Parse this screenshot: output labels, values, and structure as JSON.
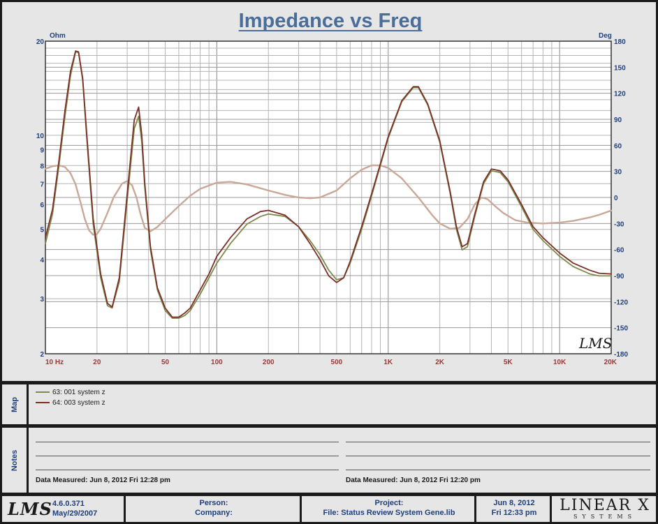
{
  "chart_data": {
    "type": "line",
    "title": "Impedance vs Freq",
    "x_scale": "log",
    "xlim": [
      10,
      20000
    ],
    "x_tick_labels": [
      {
        "value": 10,
        "label": "10  Hz"
      },
      {
        "value": 20,
        "label": "20"
      },
      {
        "value": 50,
        "label": "50"
      },
      {
        "value": 100,
        "label": "100"
      },
      {
        "value": 200,
        "label": "200"
      },
      {
        "value": 500,
        "label": "500"
      },
      {
        "value": 1000,
        "label": "1K"
      },
      {
        "value": 2000,
        "label": "2K"
      },
      {
        "value": 5000,
        "label": "5K"
      },
      {
        "value": 10000,
        "label": "10K"
      },
      {
        "value": 20000,
        "label": "20K"
      }
    ],
    "y_left": {
      "unit": "Ohm",
      "scale": "log",
      "lim": [
        2,
        20
      ],
      "ticks": [
        2,
        3,
        4,
        5,
        6,
        7,
        8,
        9,
        10,
        20
      ]
    },
    "y_right": {
      "unit": "Deg",
      "scale": "linear",
      "lim": [
        -180,
        180
      ],
      "ticks": [
        -180,
        -150,
        -120,
        -90,
        -60,
        -30,
        0,
        30,
        60,
        90,
        120,
        150,
        180
      ]
    },
    "grid": true,
    "series": [
      {
        "name": "63: 001 system z",
        "axis": "left",
        "color": "#7d8a4a",
        "x": [
          10,
          11,
          12,
          13,
          14,
          15,
          15.6,
          16.5,
          17.5,
          19,
          21,
          23,
          24.5,
          27,
          30,
          33,
          35,
          36.5,
          38,
          41,
          45,
          50,
          55,
          60,
          65,
          70,
          80,
          90,
          100,
          120,
          150,
          180,
          200,
          250,
          300,
          350,
          400,
          450,
          500,
          550,
          600,
          700,
          800,
          900,
          1000,
          1200,
          1400,
          1500,
          1700,
          2000,
          2300,
          2500,
          2700,
          2900,
          3200,
          3600,
          4000,
          4500,
          5000,
          6000,
          7000,
          8000,
          10000,
          12000,
          15000,
          17000,
          20000
        ],
        "y": [
          4.5,
          5.6,
          8.0,
          11.5,
          15.5,
          18.5,
          18.4,
          15.0,
          9.5,
          5.2,
          3.5,
          2.85,
          2.8,
          3.4,
          6.2,
          10.5,
          11.5,
          9.5,
          6.8,
          4.3,
          3.2,
          2.75,
          2.6,
          2.6,
          2.65,
          2.75,
          3.1,
          3.5,
          3.9,
          4.5,
          5.2,
          5.5,
          5.6,
          5.5,
          5.1,
          4.6,
          4.15,
          3.7,
          3.45,
          3.5,
          3.9,
          5.0,
          6.4,
          8.0,
          9.8,
          12.8,
          14.2,
          14.2,
          12.5,
          9.5,
          6.5,
          5.0,
          4.3,
          4.4,
          5.5,
          7.0,
          7.7,
          7.6,
          7.1,
          5.9,
          5.0,
          4.6,
          4.1,
          3.8,
          3.6,
          3.55,
          3.55
        ]
      },
      {
        "name": "64: 003 system z",
        "axis": "left",
        "color": "#7a3028",
        "x": [
          10,
          11,
          12,
          13,
          14,
          15,
          15.6,
          16.5,
          17.5,
          19,
          21,
          23,
          24.5,
          27,
          30,
          33,
          35,
          36.5,
          38,
          41,
          45,
          50,
          55,
          60,
          65,
          70,
          80,
          90,
          100,
          120,
          150,
          180,
          200,
          250,
          300,
          350,
          400,
          450,
          500,
          550,
          600,
          700,
          800,
          900,
          1000,
          1200,
          1400,
          1500,
          1700,
          2000,
          2300,
          2500,
          2700,
          2900,
          3200,
          3600,
          4000,
          4500,
          5000,
          6000,
          7000,
          8000,
          10000,
          12000,
          15000,
          17000,
          20000
        ],
        "y": [
          4.7,
          5.8,
          8.3,
          12.0,
          16.0,
          18.6,
          18.5,
          15.2,
          9.8,
          5.4,
          3.6,
          2.9,
          2.82,
          3.5,
          6.5,
          11.2,
          12.3,
          10.0,
          7.0,
          4.4,
          3.25,
          2.8,
          2.62,
          2.62,
          2.7,
          2.8,
          3.2,
          3.6,
          4.1,
          4.7,
          5.4,
          5.7,
          5.75,
          5.55,
          5.1,
          4.5,
          4.0,
          3.55,
          3.38,
          3.5,
          3.95,
          5.1,
          6.5,
          8.1,
          9.9,
          12.9,
          14.3,
          14.3,
          12.6,
          9.6,
          6.6,
          5.1,
          4.4,
          4.5,
          5.6,
          7.1,
          7.8,
          7.7,
          7.2,
          6.0,
          5.1,
          4.7,
          4.2,
          3.9,
          3.7,
          3.62,
          3.6
        ]
      },
      {
        "name": "phase",
        "axis": "right",
        "color": "#c9a898",
        "x": [
          10,
          11,
          12,
          13,
          14,
          15,
          16,
          17,
          18,
          19,
          20,
          21,
          23,
          25,
          28,
          30,
          32,
          34,
          36,
          38,
          41,
          45,
          50,
          60,
          70,
          80,
          100,
          120,
          150,
          200,
          250,
          300,
          350,
          400,
          500,
          600,
          700,
          800,
          900,
          1000,
          1200,
          1500,
          1800,
          2000,
          2300,
          2600,
          2900,
          3200,
          3500,
          3800,
          4200,
          4700,
          5500,
          6500,
          8000,
          10000,
          12000,
          15000,
          17000,
          20000
        ],
        "y": [
          33,
          36,
          37,
          35,
          28,
          15,
          -5,
          -25,
          -38,
          -43,
          -42,
          -36,
          -18,
          0,
          16,
          19,
          14,
          0,
          -20,
          -35,
          -39,
          -34,
          -25,
          -10,
          2,
          10,
          17,
          18,
          15,
          8,
          3,
          0,
          -1,
          0,
          8,
          22,
          32,
          37,
          37,
          34,
          22,
          0,
          -20,
          -30,
          -36,
          -35,
          -25,
          -8,
          0,
          -2,
          -10,
          -18,
          -26,
          -29,
          -30,
          -29,
          -27,
          -23,
          -20,
          -15
        ]
      }
    ]
  },
  "chart_extra": {
    "watermark": "LMS"
  },
  "map": {
    "tab_label": "Map",
    "legend": [
      {
        "label": "63: 001 system z",
        "color": "#7d8a4a"
      },
      {
        "label": "64: 003 system z",
        "color": "#7a3028"
      }
    ]
  },
  "notes": {
    "tab_label": "Notes",
    "measured_left": "Data Measured: Jun  8, 2012  Fri 12:28 pm",
    "measured_right": "Data Measured: Jun  8, 2012  Fri 12:20 pm"
  },
  "footer": {
    "logo_text": "LMS",
    "version": "4.6.0.371",
    "version_date": "May/29/2007",
    "person_label": "Person:",
    "company_label": "Company:",
    "project_label": "Project:",
    "file_label": "File: Status Review System Gene.lib",
    "date": "Jun  8, 2012",
    "time": "Fri 12:33 pm",
    "brand_big": "LINEAR X",
    "brand_small": "SYSTEMS"
  }
}
